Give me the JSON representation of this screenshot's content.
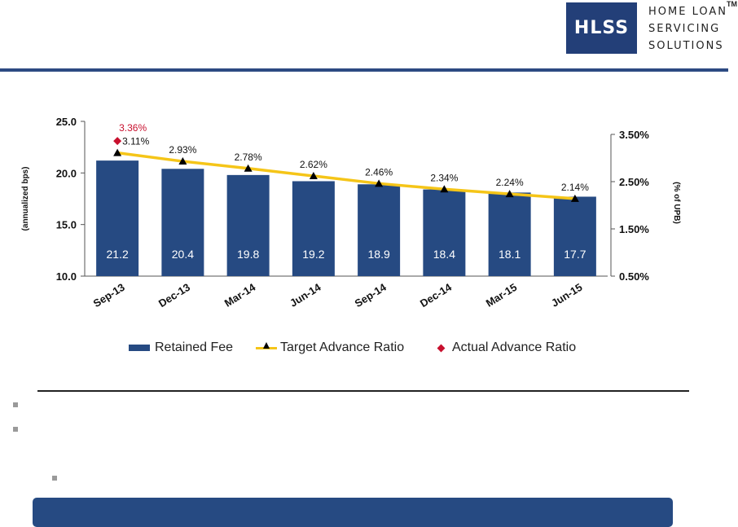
{
  "logo": {
    "mark": "HLSS",
    "lines": [
      "HOME LOAN",
      "SERVICING",
      "SOLUTIONS"
    ],
    "tm": "TM"
  },
  "colors": {
    "brand_navy": "#233f78",
    "bar": "#264a82",
    "target_line": "#f5c518",
    "actual_marker": "#c8102e",
    "bullet": "#9a9a9a"
  },
  "chart_data": {
    "type": "bar",
    "categories": [
      "Sep-13",
      "Dec-13",
      "Mar-14",
      "Jun-14",
      "Sep-14",
      "Dec-14",
      "Mar-15",
      "Jun-15"
    ],
    "series": [
      {
        "name": "Retained Fee",
        "type": "bar",
        "axis": "left",
        "values": [
          21.2,
          20.4,
          19.8,
          19.2,
          18.9,
          18.4,
          18.1,
          17.7
        ],
        "labels": [
          "21.2",
          "20.4",
          "19.8",
          "19.2",
          "18.9",
          "18.4",
          "18.1",
          "17.7"
        ]
      },
      {
        "name": "Target Advance Ratio",
        "type": "line",
        "axis": "right",
        "values": [
          3.11,
          2.93,
          2.78,
          2.62,
          2.46,
          2.34,
          2.24,
          2.14
        ],
        "labels": [
          "3.11%",
          "2.93%",
          "2.78%",
          "2.62%",
          "2.46%",
          "2.34%",
          "2.24%",
          "2.14%"
        ]
      },
      {
        "name": "Actual Advance Ratio",
        "type": "scatter",
        "axis": "right",
        "values": [
          3.36,
          null,
          null,
          null,
          null,
          null,
          null,
          null
        ],
        "labels": [
          "3.36%"
        ]
      }
    ],
    "ylabel": "(annualized bps)",
    "y2label": "(% of UPB)",
    "ylim": [
      10.0,
      25.0
    ],
    "y2lim": [
      0.5,
      3.7
    ],
    "yticks": [
      "25.0",
      "20.0",
      "15.0",
      "10.0"
    ],
    "ytick_values": [
      25,
      20,
      15,
      10
    ],
    "y2ticks": [
      "3.50%",
      "2.50%",
      "1.50%",
      "0.50%"
    ],
    "y2tick_values": [
      3.5,
      2.5,
      1.5,
      0.5
    ],
    "legend": "bottom",
    "grid": false
  }
}
